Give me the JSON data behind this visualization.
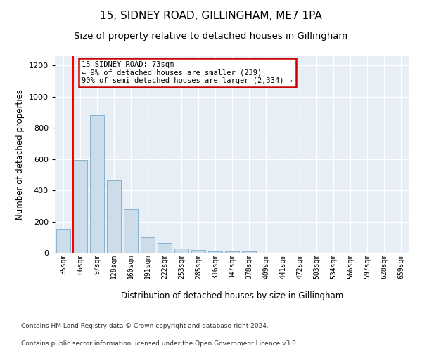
{
  "title": "15, SIDNEY ROAD, GILLINGHAM, ME7 1PA",
  "subtitle": "Size of property relative to detached houses in Gillingham",
  "xlabel": "Distribution of detached houses by size in Gillingham",
  "ylabel": "Number of detached properties",
  "categories": [
    "35sqm",
    "66sqm",
    "97sqm",
    "128sqm",
    "160sqm",
    "191sqm",
    "222sqm",
    "253sqm",
    "285sqm",
    "316sqm",
    "347sqm",
    "378sqm",
    "409sqm",
    "441sqm",
    "472sqm",
    "503sqm",
    "534sqm",
    "566sqm",
    "597sqm",
    "628sqm",
    "659sqm"
  ],
  "values": [
    155,
    595,
    880,
    462,
    280,
    100,
    62,
    25,
    20,
    10,
    10,
    10,
    0,
    0,
    0,
    0,
    0,
    0,
    0,
    0,
    0
  ],
  "bar_color": "#ccdce8",
  "bar_edge_color": "#7aaac8",
  "annotation_text": "15 SIDNEY ROAD: 73sqm\n← 9% of detached houses are smaller (239)\n90% of semi-detached houses are larger (2,334) →",
  "annotation_box_facecolor": "#ffffff",
  "annotation_box_edgecolor": "#cc0000",
  "red_line_x": 0.575,
  "ylim": [
    0,
    1260
  ],
  "yticks": [
    0,
    200,
    400,
    600,
    800,
    1000,
    1200
  ],
  "footer_line1": "Contains HM Land Registry data © Crown copyright and database right 2024.",
  "footer_line2": "Contains public sector information licensed under the Open Government Licence v3.0.",
  "background_color": "#e8eef5",
  "title_fontsize": 11,
  "subtitle_fontsize": 9.5,
  "xlabel_fontsize": 8.5,
  "ylabel_fontsize": 8.5,
  "tick_fontsize": 7,
  "footer_fontsize": 6.5
}
